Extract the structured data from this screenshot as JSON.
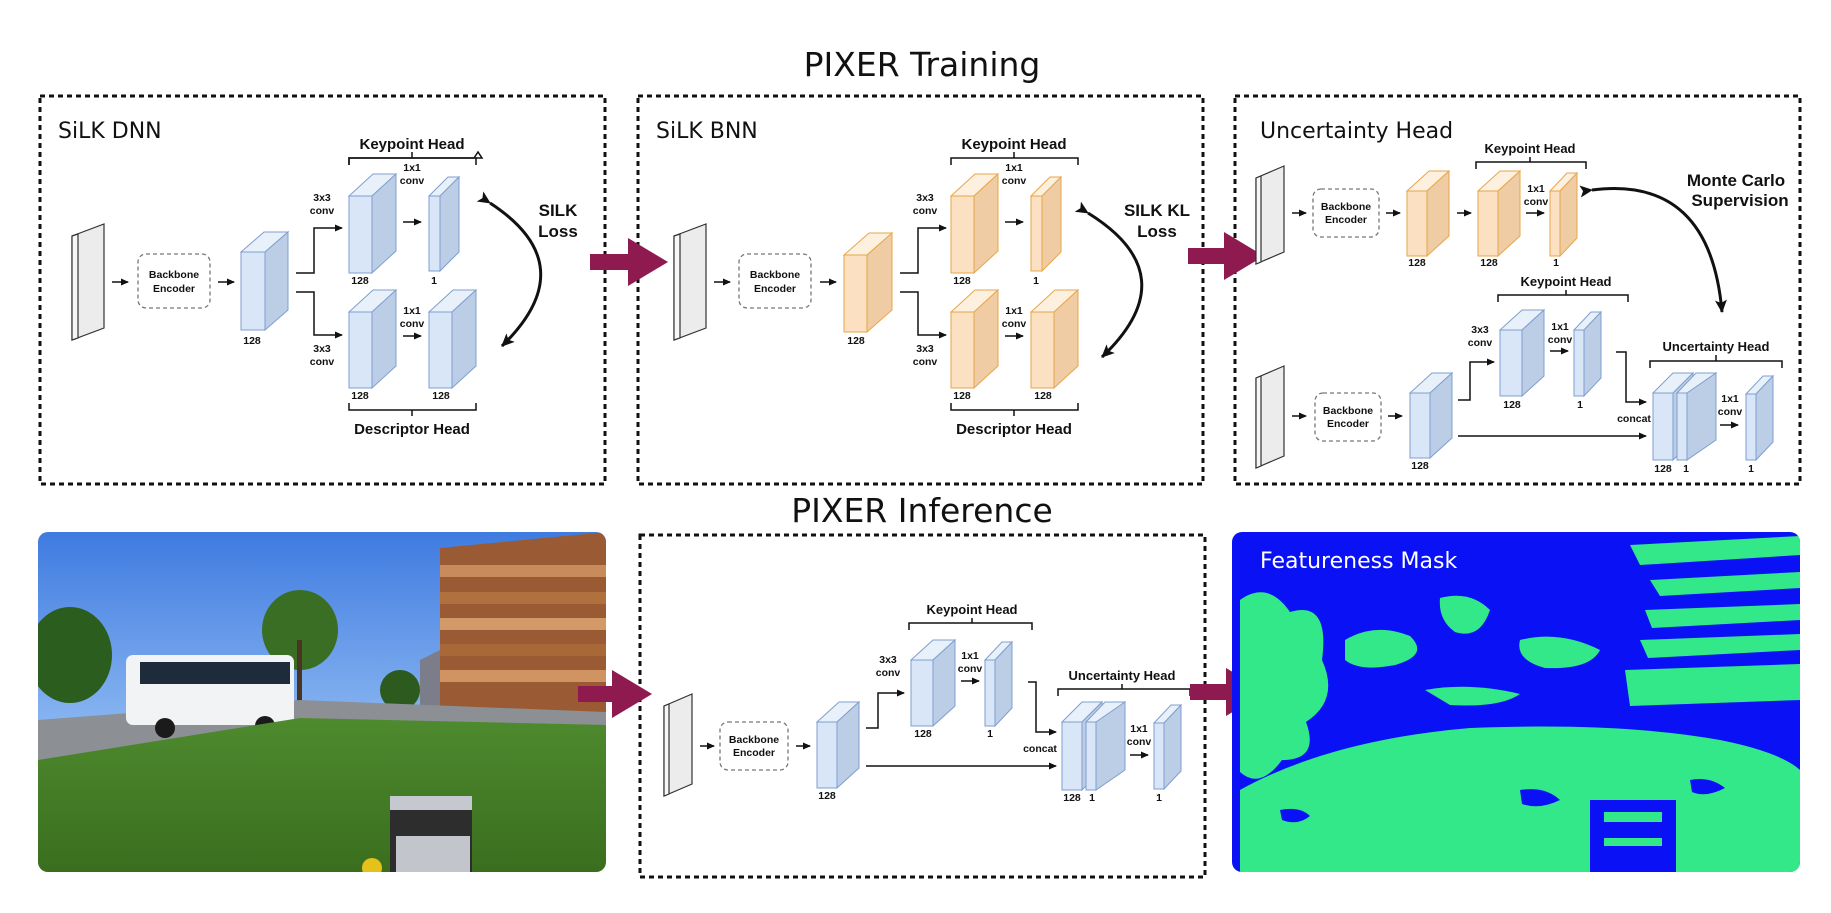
{
  "titles": {
    "training": "PIXER Training",
    "inference": "PIXER Inference"
  },
  "panels": {
    "silk_dnn": {
      "title": "SiLK DNN",
      "encoder": [
        "Backbone",
        "Encoder"
      ],
      "keypoint_head": "Keypoint Head",
      "descriptor_head": "Descriptor Head",
      "conv3": [
        "3x3",
        "conv"
      ],
      "conv1": [
        "1x1",
        "conv"
      ],
      "dims": {
        "enc": "128",
        "kp_a": "128",
        "kp_b": "1",
        "de_a": "128",
        "de_b": "128"
      },
      "loss": [
        "SILK",
        "Loss"
      ]
    },
    "silk_bnn": {
      "title": "SiLK BNN",
      "encoder": [
        "Backbone",
        "Encoder"
      ],
      "keypoint_head": "Keypoint Head",
      "descriptor_head": "Descriptor Head",
      "conv3": [
        "3x3",
        "conv"
      ],
      "conv1": [
        "1x1",
        "conv"
      ],
      "dims": {
        "enc": "128",
        "kp_a": "128",
        "kp_b": "1",
        "de_a": "128",
        "de_b": "128"
      },
      "loss": [
        "SILK KL",
        "Loss"
      ]
    },
    "uncertainty": {
      "title": "Uncertainty Head",
      "encoder": [
        "Backbone",
        "Encoder"
      ],
      "keypoint_head": "Keypoint Head",
      "uncertainty_head": "Uncertainty Head",
      "supervision": [
        "Monte Carlo",
        "Supervision"
      ],
      "conv3": [
        "3x3",
        "conv"
      ],
      "conv1": [
        "1x1",
        "conv"
      ],
      "concat": "concat",
      "dims": {
        "top_enc": "128",
        "top_kp_a": "128",
        "top_kp_b": "1",
        "enc": "128",
        "kp_a": "128",
        "kp_b": "1",
        "cat_a": "128",
        "cat_b": "1",
        "out": "1"
      }
    },
    "inference": {
      "encoder": [
        "Backbone",
        "Encoder"
      ],
      "keypoint_head": "Keypoint Head",
      "uncertainty_head": "Uncertainty Head",
      "conv3": [
        "3x3",
        "conv"
      ],
      "conv1": [
        "1x1",
        "conv"
      ],
      "concat": "concat",
      "dims": {
        "enc": "128",
        "kp_a": "128",
        "kp_b": "1",
        "cat_a": "128",
        "cat_b": "1",
        "out": "1"
      }
    },
    "mask": {
      "title": "Featureness Mask"
    }
  },
  "colors": {
    "blue_face": "#d9e6f7",
    "blue_side": "#bccde6",
    "blue_stroke": "#7f9fd0",
    "orange_face": "#fbe1c1",
    "orange_side": "#efcca3",
    "orange_stroke": "#e7a64b",
    "arrow_big": "#8e1a4f",
    "mask_bg": "#0a12f5",
    "mask_fg": "#33e888"
  }
}
